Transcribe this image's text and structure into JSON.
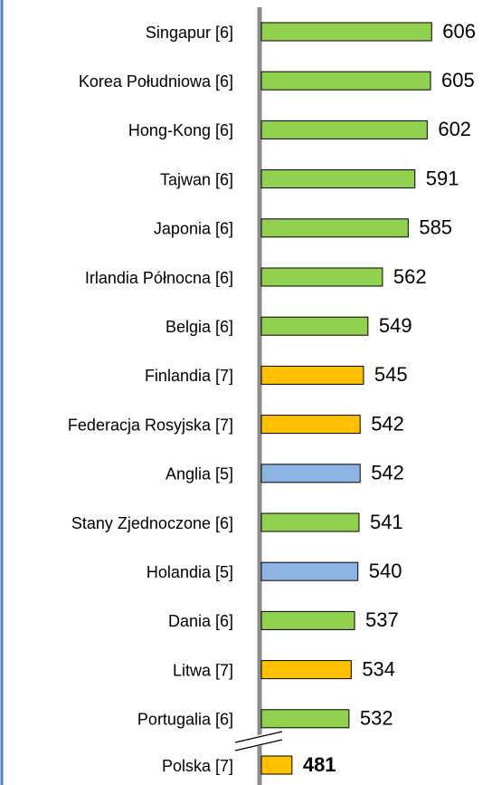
{
  "chart_data": {
    "type": "bar",
    "orientation": "horizontal",
    "categories": [
      "Singapur [6]",
      "Korea Południowa [6]",
      "Hong-Kong [6]",
      "Tajwan [6]",
      "Japonia [6]",
      "Irlandia Północna [6]",
      "Belgia [6]",
      "Finlandia [7]",
      "Federacja Rosyjska [7]",
      "Anglia [5]",
      "Stany Zjednoczone [6]",
      "Holandia [5]",
      "Dania [6]",
      "Litwa [7]",
      "Portugalia [6]",
      "Polska [7]"
    ],
    "values": [
      606,
      605,
      602,
      591,
      585,
      562,
      549,
      545,
      542,
      542,
      541,
      540,
      537,
      534,
      532,
      481
    ],
    "colors": [
      "#92d050",
      "#92d050",
      "#92d050",
      "#92d050",
      "#92d050",
      "#92d050",
      "#92d050",
      "#ffc000",
      "#ffc000",
      "#8db4e2",
      "#92d050",
      "#8db4e2",
      "#92d050",
      "#ffc000",
      "#92d050",
      "#ffc000"
    ],
    "highlight": "Polska [7]",
    "xlim": [
      452,
      660
    ]
  }
}
